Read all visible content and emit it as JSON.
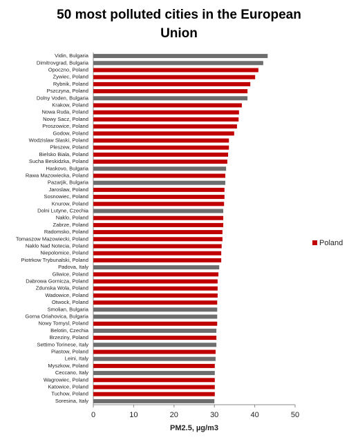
{
  "chart_data": {
    "type": "bar",
    "orientation": "horizontal",
    "title": "50 most polluted cities in the European Union",
    "x_label": "PM2.5, µg/m3",
    "categories": [
      "Vidin, Bulgaria",
      "Dimitrovgrad, Bulgaria",
      "Opoczno, Poland",
      "Zywiec, Poland",
      "Rybnik, Poland",
      "Pszczyna, Poland",
      "Dolny Voden, Bulgaria",
      "Krakow, Poland",
      "Nowa Ruda, Poland",
      "Nowy Sacz, Poland",
      "Proszowice, Poland",
      "Godow, Poland",
      "Wodzislaw Slaski, Poland",
      "Pleszew, Poland",
      "Bielsko Biala, Poland",
      "Sucha Beskidzka, Poland",
      "Haskovo, Bulgaria",
      "Rawa Mazowiecka, Poland",
      "Pazarjik, Bulgaria",
      "Jaroslaw, Poland",
      "Sosnowiec, Poland",
      "Knurow, Poland",
      "Dolni Lutyne, Czechia",
      "Naklo, Poland",
      "Zabrze, Poland",
      "Radomsko, Poland",
      "Tomaszow Mazowiecki, Poland",
      "Naklo Nad Notecia, Poland",
      "Niepolomice, Poland",
      "Piotrkow Trybunalski, Poland",
      "Padova, Italy",
      "Gliwice, Poland",
      "Dabrowa Gornicza, Poland",
      "Zdunska Wola, Poland",
      "Wadowice, Poland",
      "Otwock, Poland",
      "Smolian, Bulgaria",
      "Gorna Oriahovica, Bulgaria",
      "Nowy Tomysl, Poland",
      "Belotin, Czechia",
      "Brzeziny, Poland",
      "Settimo Torinese, Italy",
      "Piastow, Poland",
      "Leini, Italy",
      "Myszkow, Poland",
      "Ceccano, Italy",
      "Wagrowiec, Poland",
      "Katowice, Poland",
      "Tuchow, Poland",
      "Soresina, Italy"
    ],
    "values": [
      43.2,
      42.1,
      40.9,
      40.1,
      38.9,
      38.2,
      38.2,
      36.8,
      36.1,
      36.0,
      35.6,
      34.9,
      33.6,
      33.6,
      33.4,
      33.2,
      32.9,
      32.7,
      32.7,
      32.5,
      32.5,
      32.4,
      32.2,
      32.2,
      32.2,
      32.0,
      32.0,
      31.8,
      31.7,
      31.7,
      31.2,
      31.0,
      30.8,
      30.8,
      30.8,
      30.7,
      30.7,
      30.7,
      30.7,
      30.5,
      30.5,
      30.5,
      30.3,
      30.3,
      30.1,
      30.1,
      30.1,
      30.1,
      30.1,
      30.0
    ],
    "colors": [
      "#6d6d6d",
      "#6d6d6d",
      "#c00000",
      "#c00000",
      "#c00000",
      "#c00000",
      "#6d6d6d",
      "#c00000",
      "#c00000",
      "#c00000",
      "#c00000",
      "#c00000",
      "#c00000",
      "#c00000",
      "#c00000",
      "#c00000",
      "#6d6d6d",
      "#c00000",
      "#6d6d6d",
      "#c00000",
      "#c00000",
      "#c00000",
      "#6d6d6d",
      "#c00000",
      "#c00000",
      "#c00000",
      "#c00000",
      "#c00000",
      "#c00000",
      "#c00000",
      "#6d6d6d",
      "#c00000",
      "#c00000",
      "#c00000",
      "#c00000",
      "#c00000",
      "#6d6d6d",
      "#6d6d6d",
      "#c00000",
      "#6d6d6d",
      "#c00000",
      "#6d6d6d",
      "#c00000",
      "#6d6d6d",
      "#c00000",
      "#6d6d6d",
      "#c00000",
      "#c00000",
      "#c00000",
      "#6d6d6d"
    ],
    "legend": {
      "label": "Poland",
      "color": "#c00000",
      "position": "right"
    },
    "xlim": [
      0,
      50
    ],
    "xticks": [
      0,
      10,
      20,
      30,
      40,
      50
    ],
    "grid": false
  }
}
